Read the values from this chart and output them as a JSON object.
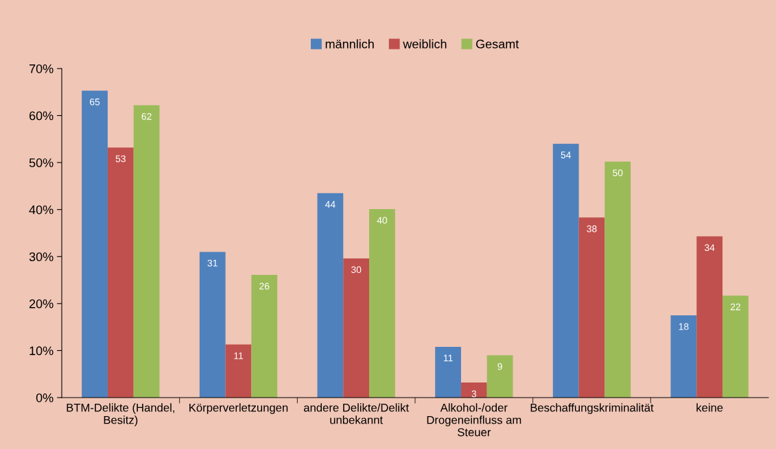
{
  "chart_data": {
    "type": "bar",
    "categories": [
      "BTM-Delikte (Handel, Besitz)",
      "Körperverletzungen",
      "andere Delikte/Delikt unbekannt",
      "Alkohol-/oder Drogeneinfluss am Steuer",
      "Beschaffungskriminalität",
      "keine"
    ],
    "series": [
      {
        "name": "männlich",
        "color": "#4f81bd",
        "values": [
          65.3,
          31,
          43.5,
          10.8,
          54,
          17.5
        ],
        "value_labels": [
          "65",
          "31",
          "44",
          "11",
          "54",
          "18"
        ]
      },
      {
        "name": "weiblich",
        "color": "#c0504d",
        "values": [
          53.2,
          11.3,
          29.6,
          3.2,
          38.3,
          34.3
        ],
        "value_labels": [
          "53",
          "11",
          "30",
          "3",
          "38",
          "34"
        ]
      },
      {
        "name": "Gesamt",
        "color": "#9bbb59",
        "values": [
          62.2,
          26.1,
          40.1,
          9,
          50.2,
          21.7
        ],
        "value_labels": [
          "62",
          "26",
          "40",
          "9",
          "50",
          "22"
        ]
      }
    ],
    "ylim": [
      0,
      70
    ],
    "yticks": [
      {
        "value": 0,
        "label": "0%"
      },
      {
        "value": 10,
        "label": "10%"
      },
      {
        "value": 20,
        "label": "20%"
      },
      {
        "value": 30,
        "label": "30%"
      },
      {
        "value": 40,
        "label": "40%"
      },
      {
        "value": 50,
        "label": "50%"
      },
      {
        "value": 60,
        "label": "60%"
      },
      {
        "value": 70,
        "label": "70%"
      }
    ],
    "grid": false,
    "legend": "top"
  }
}
